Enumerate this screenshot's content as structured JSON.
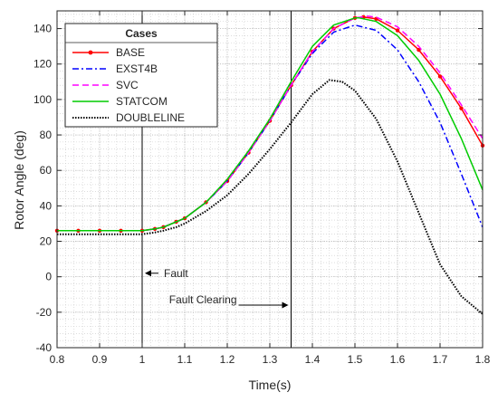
{
  "chart_data": {
    "type": "line",
    "title": "",
    "xlabel": "Time(s)",
    "ylabel": "Rotor Angle (deg)",
    "xlim": [
      0.8,
      1.8
    ],
    "ylim": [
      -40,
      150
    ],
    "xticks": [
      0.8,
      0.9,
      1.0,
      1.1,
      1.2,
      1.3,
      1.4,
      1.5,
      1.6,
      1.7,
      1.8
    ],
    "xtick_labels": [
      "0.8",
      "0.9",
      "1",
      "1.1",
      "1.2",
      "1.3",
      "1.4",
      "1.5",
      "1.6",
      "1.7",
      "1.8"
    ],
    "yticks": [
      -40,
      -20,
      0,
      20,
      40,
      60,
      80,
      100,
      120,
      140
    ],
    "ytick_labels": [
      "-40",
      "-20",
      "0",
      "20",
      "40",
      "60",
      "80",
      "100",
      "120",
      "140"
    ],
    "grid": "minor dotted",
    "legend": {
      "title": "Cases",
      "placement": "top-left"
    },
    "vlines": [
      1.0,
      1.35
    ],
    "annotations": [
      {
        "text": "Fault",
        "x": 1.0,
        "y": 2
      },
      {
        "text": "Fault Clearing",
        "x": 1.35,
        "y": -16
      }
    ],
    "series": [
      {
        "name": "BASE",
        "color": "#ff0000",
        "style": "solid-dot",
        "x": [
          0.8,
          0.85,
          0.9,
          0.95,
          1.0,
          1.03,
          1.05,
          1.08,
          1.1,
          1.15,
          1.2,
          1.25,
          1.3,
          1.35,
          1.4,
          1.45,
          1.5,
          1.52,
          1.55,
          1.6,
          1.65,
          1.7,
          1.75,
          1.8
        ],
        "y": [
          26,
          26,
          26,
          26,
          26,
          27,
          28,
          31,
          33,
          42,
          54,
          70,
          88,
          108,
          127,
          140,
          146,
          146.5,
          145.5,
          139,
          128,
          113,
          95,
          74
        ]
      },
      {
        "name": "EXST4B",
        "color": "#0000ff",
        "style": "dashdot",
        "x": [
          0.8,
          0.85,
          0.9,
          0.95,
          1.0,
          1.03,
          1.05,
          1.08,
          1.1,
          1.15,
          1.2,
          1.25,
          1.3,
          1.35,
          1.4,
          1.45,
          1.5,
          1.55,
          1.6,
          1.65,
          1.7,
          1.75,
          1.8
        ],
        "y": [
          26,
          26,
          26,
          26,
          26,
          27,
          28,
          31,
          33,
          42,
          54,
          70,
          88,
          108,
          126,
          138,
          142,
          139,
          128,
          110,
          87,
          58,
          28
        ]
      },
      {
        "name": "SVC",
        "color": "#ff00ff",
        "style": "dashed",
        "x": [
          0.8,
          0.85,
          0.9,
          0.95,
          1.0,
          1.03,
          1.05,
          1.08,
          1.1,
          1.15,
          1.2,
          1.25,
          1.3,
          1.35,
          1.4,
          1.45,
          1.5,
          1.53,
          1.55,
          1.6,
          1.65,
          1.7,
          1.75,
          1.8
        ],
        "y": [
          26,
          26,
          26,
          26,
          26,
          27,
          28,
          31,
          33,
          42,
          54,
          70,
          88,
          108,
          127,
          140,
          146,
          147,
          146.5,
          141,
          130,
          115,
          97,
          78
        ]
      },
      {
        "name": "STATCOM",
        "color": "#00cc00",
        "style": "solid",
        "x": [
          0.8,
          0.85,
          0.9,
          0.95,
          1.0,
          1.03,
          1.05,
          1.08,
          1.1,
          1.15,
          1.2,
          1.25,
          1.3,
          1.35,
          1.4,
          1.45,
          1.5,
          1.51,
          1.55,
          1.6,
          1.65,
          1.7,
          1.75,
          1.8
        ],
        "y": [
          26,
          26,
          26,
          26,
          26,
          27,
          28,
          31,
          33,
          42,
          55,
          71,
          89,
          110,
          130,
          142,
          146,
          146,
          144,
          136,
          122,
          103,
          78,
          49
        ]
      },
      {
        "name": "DOUBLELINE",
        "color": "#000000",
        "style": "dotted",
        "x": [
          0.8,
          0.85,
          0.9,
          0.95,
          1.0,
          1.03,
          1.05,
          1.08,
          1.1,
          1.15,
          1.2,
          1.25,
          1.3,
          1.35,
          1.4,
          1.44,
          1.47,
          1.5,
          1.55,
          1.6,
          1.65,
          1.7,
          1.75,
          1.8
        ],
        "y": [
          24,
          24,
          24,
          24,
          24,
          25,
          26,
          28,
          30,
          37,
          46,
          58,
          72,
          87,
          103,
          111,
          110,
          105,
          89,
          65,
          36,
          7,
          -11,
          -21
        ]
      }
    ]
  }
}
